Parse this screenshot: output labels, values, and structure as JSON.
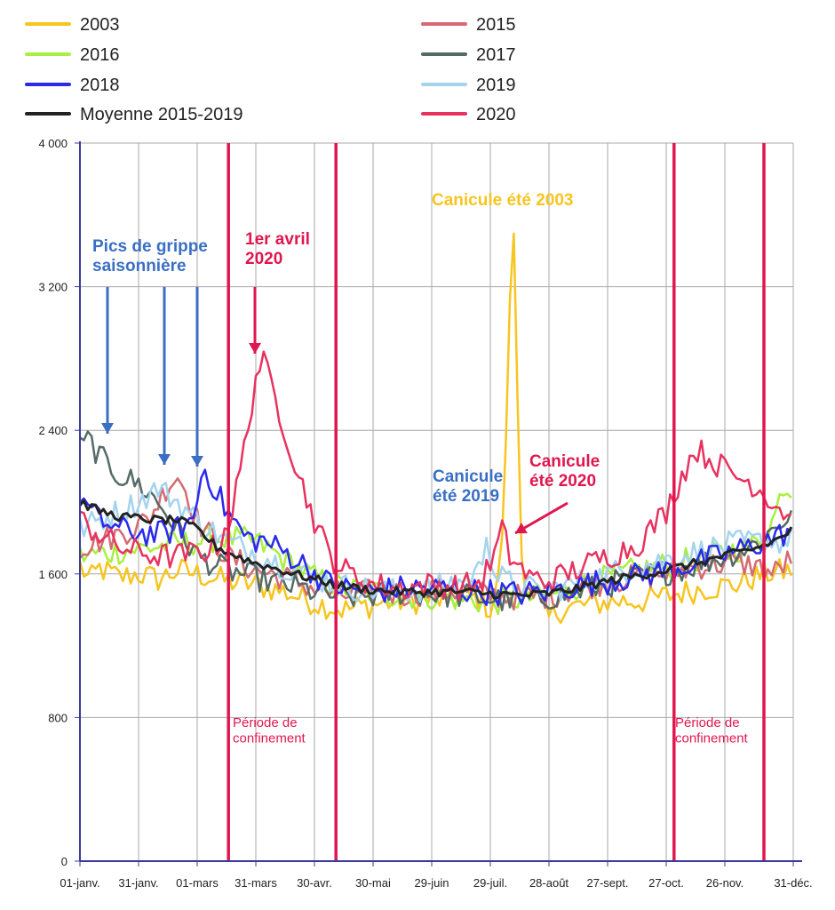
{
  "chart_data": {
    "type": "line",
    "ylim": [
      0,
      4000
    ],
    "yticks": [
      0,
      800,
      1600,
      2400,
      3200,
      4000
    ],
    "ytick_labels": [
      "0",
      "800",
      "1 600",
      "2 400",
      "3 200",
      "4 000"
    ],
    "x_days": 365,
    "xticks": [
      {
        "day": 0,
        "label": "01-janv."
      },
      {
        "day": 30,
        "label": "31-janv."
      },
      {
        "day": 60,
        "label": "01-mars"
      },
      {
        "day": 90,
        "label": "31-mars"
      },
      {
        "day": 120,
        "label": "30-avr."
      },
      {
        "day": 150,
        "label": "30-mai"
      },
      {
        "day": 180,
        "label": "29-juin"
      },
      {
        "day": 210,
        "label": "29-juil."
      },
      {
        "day": 240,
        "label": "28-août"
      },
      {
        "day": 270,
        "label": "27-sept."
      },
      {
        "day": 300,
        "label": "27-oct."
      },
      {
        "day": 330,
        "label": "26-nov."
      },
      {
        "day": 365,
        "label": "31-déc."
      }
    ],
    "series": [
      {
        "name": "2003",
        "color": "#f7c520",
        "pts": [
          [
            0,
            1650
          ],
          [
            5,
            1560
          ],
          [
            10,
            1630
          ],
          [
            20,
            1580
          ],
          [
            30,
            1600
          ],
          [
            40,
            1570
          ],
          [
            50,
            1620
          ],
          [
            60,
            1600
          ],
          [
            75,
            1560
          ],
          [
            90,
            1540
          ],
          [
            105,
            1500
          ],
          [
            120,
            1440
          ],
          [
            135,
            1400
          ],
          [
            150,
            1430
          ],
          [
            165,
            1450
          ],
          [
            180,
            1450
          ],
          [
            195,
            1470
          ],
          [
            205,
            1460
          ],
          [
            210,
            1400
          ],
          [
            215,
            1600
          ],
          [
            218,
            2300
          ],
          [
            221,
            3600
          ],
          [
            223,
            3300
          ],
          [
            225,
            1800
          ],
          [
            228,
            1550
          ],
          [
            235,
            1450
          ],
          [
            240,
            1350
          ],
          [
            245,
            1400
          ],
          [
            260,
            1430
          ],
          [
            275,
            1450
          ],
          [
            290,
            1450
          ],
          [
            305,
            1490
          ],
          [
            320,
            1520
          ],
          [
            335,
            1540
          ],
          [
            350,
            1600
          ],
          [
            365,
            1620
          ]
        ]
      },
      {
        "name": "2015",
        "color": "#d46b73",
        "pts": [
          [
            0,
            1750
          ],
          [
            20,
            1820
          ],
          [
            35,
            1900
          ],
          [
            45,
            2100
          ],
          [
            50,
            2150
          ],
          [
            55,
            2050
          ],
          [
            60,
            1900
          ],
          [
            75,
            1700
          ],
          [
            90,
            1620
          ],
          [
            105,
            1580
          ],
          [
            120,
            1520
          ],
          [
            135,
            1480
          ],
          [
            150,
            1500
          ],
          [
            165,
            1490
          ],
          [
            180,
            1500
          ],
          [
            195,
            1510
          ],
          [
            210,
            1480
          ],
          [
            225,
            1470
          ],
          [
            240,
            1480
          ],
          [
            255,
            1520
          ],
          [
            270,
            1560
          ],
          [
            285,
            1580
          ],
          [
            300,
            1600
          ],
          [
            315,
            1640
          ],
          [
            330,
            1660
          ],
          [
            345,
            1650
          ],
          [
            355,
            1600
          ],
          [
            365,
            1700
          ]
        ]
      },
      {
        "name": "2016",
        "color": "#a8f040",
        "pts": [
          [
            0,
            1700
          ],
          [
            15,
            1720
          ],
          [
            30,
            1740
          ],
          [
            45,
            1760
          ],
          [
            60,
            1780
          ],
          [
            75,
            1800
          ],
          [
            90,
            1780
          ],
          [
            105,
            1680
          ],
          [
            120,
            1580
          ],
          [
            135,
            1520
          ],
          [
            150,
            1500
          ],
          [
            165,
            1480
          ],
          [
            180,
            1470
          ],
          [
            195,
            1460
          ],
          [
            210,
            1440
          ],
          [
            225,
            1460
          ],
          [
            240,
            1480
          ],
          [
            255,
            1530
          ],
          [
            270,
            1580
          ],
          [
            285,
            1620
          ],
          [
            300,
            1650
          ],
          [
            315,
            1680
          ],
          [
            330,
            1720
          ],
          [
            345,
            1760
          ],
          [
            355,
            1900
          ],
          [
            360,
            2100
          ],
          [
            365,
            2050
          ]
        ]
      },
      {
        "name": "2017",
        "color": "#556b66",
        "pts": [
          [
            0,
            2300
          ],
          [
            5,
            2350
          ],
          [
            10,
            2250
          ],
          [
            20,
            2150
          ],
          [
            30,
            2100
          ],
          [
            40,
            2000
          ],
          [
            50,
            1850
          ],
          [
            60,
            1700
          ],
          [
            75,
            1620
          ],
          [
            90,
            1580
          ],
          [
            105,
            1540
          ],
          [
            120,
            1500
          ],
          [
            135,
            1470
          ],
          [
            150,
            1480
          ],
          [
            165,
            1500
          ],
          [
            180,
            1490
          ],
          [
            195,
            1480
          ],
          [
            210,
            1460
          ],
          [
            225,
            1450
          ],
          [
            240,
            1470
          ],
          [
            255,
            1500
          ],
          [
            270,
            1540
          ],
          [
            285,
            1580
          ],
          [
            300,
            1610
          ],
          [
            315,
            1650
          ],
          [
            330,
            1700
          ],
          [
            345,
            1760
          ],
          [
            355,
            1850
          ],
          [
            365,
            1950
          ]
        ]
      },
      {
        "name": "2018",
        "color": "#2a2aee",
        "pts": [
          [
            0,
            2050
          ],
          [
            5,
            1950
          ],
          [
            10,
            1900
          ],
          [
            20,
            1850
          ],
          [
            30,
            1830
          ],
          [
            40,
            1820
          ],
          [
            50,
            1850
          ],
          [
            58,
            1900
          ],
          [
            63,
            2200
          ],
          [
            68,
            2100
          ],
          [
            75,
            1950
          ],
          [
            85,
            1800
          ],
          [
            95,
            1780
          ],
          [
            105,
            1720
          ],
          [
            115,
            1650
          ],
          [
            125,
            1560
          ],
          [
            135,
            1520
          ],
          [
            150,
            1500
          ],
          [
            165,
            1520
          ],
          [
            180,
            1520
          ],
          [
            195,
            1510
          ],
          [
            210,
            1500
          ],
          [
            225,
            1490
          ],
          [
            240,
            1500
          ],
          [
            255,
            1540
          ],
          [
            270,
            1560
          ],
          [
            285,
            1590
          ],
          [
            300,
            1620
          ],
          [
            315,
            1660
          ],
          [
            330,
            1710
          ],
          [
            345,
            1760
          ],
          [
            355,
            1800
          ],
          [
            365,
            1850
          ]
        ]
      },
      {
        "name": "2019",
        "color": "#a4d4ee",
        "pts": [
          [
            0,
            1850
          ],
          [
            10,
            1900
          ],
          [
            20,
            1950
          ],
          [
            30,
            2000
          ],
          [
            40,
            2080
          ],
          [
            50,
            2000
          ],
          [
            60,
            1900
          ],
          [
            75,
            1780
          ],
          [
            90,
            1720
          ],
          [
            105,
            1640
          ],
          [
            120,
            1580
          ],
          [
            135,
            1530
          ],
          [
            150,
            1510
          ],
          [
            165,
            1500
          ],
          [
            180,
            1520
          ],
          [
            195,
            1560
          ],
          [
            205,
            1620
          ],
          [
            208,
            1850
          ],
          [
            212,
            1600
          ],
          [
            225,
            1520
          ],
          [
            240,
            1510
          ],
          [
            255,
            1550
          ],
          [
            270,
            1600
          ],
          [
            285,
            1640
          ],
          [
            300,
            1680
          ],
          [
            315,
            1720
          ],
          [
            330,
            1760
          ],
          [
            345,
            1780
          ],
          [
            360,
            1780
          ],
          [
            365,
            1800
          ]
        ]
      },
      {
        "name": "2020",
        "color": "#e8325f",
        "pts": [
          [
            0,
            1900
          ],
          [
            10,
            1820
          ],
          [
            20,
            1750
          ],
          [
            30,
            1720
          ],
          [
            40,
            1700
          ],
          [
            50,
            1700
          ],
          [
            60,
            1720
          ],
          [
            70,
            1750
          ],
          [
            78,
            1950
          ],
          [
            85,
            2350
          ],
          [
            90,
            2700
          ],
          [
            93,
            2800
          ],
          [
            98,
            2650
          ],
          [
            105,
            2400
          ],
          [
            112,
            2150
          ],
          [
            120,
            1900
          ],
          [
            128,
            1700
          ],
          [
            135,
            1620
          ],
          [
            150,
            1540
          ],
          [
            165,
            1520
          ],
          [
            180,
            1540
          ],
          [
            195,
            1530
          ],
          [
            205,
            1550
          ],
          [
            212,
            1700
          ],
          [
            216,
            1850
          ],
          [
            220,
            1700
          ],
          [
            230,
            1580
          ],
          [
            240,
            1560
          ],
          [
            255,
            1630
          ],
          [
            270,
            1700
          ],
          [
            285,
            1760
          ],
          [
            300,
            1950
          ],
          [
            308,
            2150
          ],
          [
            315,
            2300
          ],
          [
            325,
            2220
          ],
          [
            335,
            2150
          ],
          [
            345,
            2100
          ],
          [
            355,
            2000
          ],
          [
            360,
            1950
          ],
          [
            365,
            1900
          ]
        ]
      },
      {
        "name": "Moyenne 2015-2019",
        "color": "#222222",
        "pts": [
          [
            0,
            2000
          ],
          [
            10,
            1950
          ],
          [
            20,
            1920
          ],
          [
            30,
            1910
          ],
          [
            40,
            1900
          ],
          [
            50,
            1900
          ],
          [
            60,
            1850
          ],
          [
            70,
            1750
          ],
          [
            80,
            1700
          ],
          [
            90,
            1660
          ],
          [
            100,
            1630
          ],
          [
            110,
            1600
          ],
          [
            120,
            1570
          ],
          [
            135,
            1530
          ],
          [
            150,
            1510
          ],
          [
            165,
            1500
          ],
          [
            180,
            1500
          ],
          [
            195,
            1500
          ],
          [
            210,
            1490
          ],
          [
            225,
            1480
          ],
          [
            240,
            1490
          ],
          [
            255,
            1520
          ],
          [
            270,
            1560
          ],
          [
            285,
            1590
          ],
          [
            300,
            1620
          ],
          [
            315,
            1660
          ],
          [
            330,
            1700
          ],
          [
            345,
            1740
          ],
          [
            355,
            1780
          ],
          [
            365,
            1850
          ]
        ]
      }
    ],
    "confinement_lines": [
      76,
      131,
      304,
      350
    ],
    "annotations": {
      "grippe": "Pics de grippe\nsaisonnière",
      "avril": "1er avril\n2020",
      "canicule2003": "Canicule été 2003",
      "canicule2019": "Canicule\nété 2019",
      "canicule2020": "Canicule\nété 2020",
      "confinement1": "Période de\nconfinement",
      "confinement2": "Période de\nconfinement"
    },
    "colors": {
      "blue_annotation": "#3a6fc4",
      "red_annotation": "#e0174f",
      "yellow_annotation": "#f7c520",
      "axis": "#3a3aa0",
      "grid": "#a8a8a8"
    }
  }
}
